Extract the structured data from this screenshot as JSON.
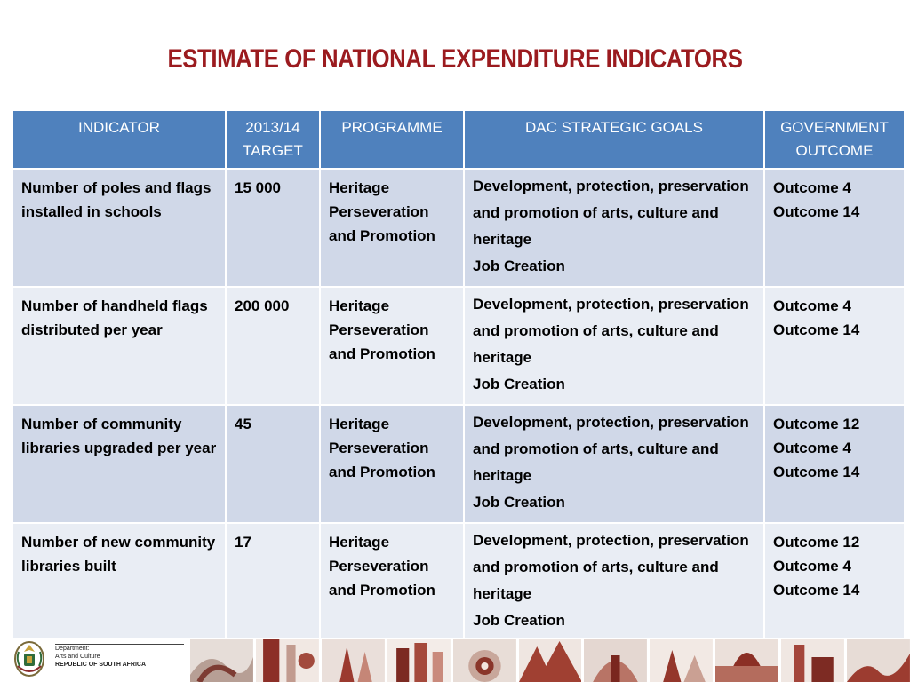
{
  "title": "ESTIMATE OF NATIONAL EXPENDITURE INDICATORS",
  "table": {
    "headers": [
      "INDICATOR",
      "2013/14\nTARGET",
      "PROGRAMME",
      "DAC STRATEGIC GOALS",
      "GOVERNMENT\nOUTCOME"
    ],
    "rows": [
      {
        "indicator": "Number of poles and flags installed in schools",
        "target": "15 000",
        "programme": "Heritage Perseveration and  Promotion",
        "goals": "Development, protection, preservation and promotion of arts, culture and heritage\nJob Creation",
        "outcome": "Outcome 4\nOutcome 14"
      },
      {
        "indicator": "Number of handheld flags distributed per year",
        "target": "200 000",
        "programme": "Heritage Perseveration and  Promotion",
        "goals": "Development, protection, preservation and promotion of arts, culture and heritage\nJob Creation",
        "outcome": "Outcome 4\nOutcome 14"
      },
      {
        "indicator": "Number of community libraries upgraded per year",
        "target": "45",
        "programme": "Heritage Perseveration and  Promotion",
        "goals": "Development, protection, preservation and promotion of arts, culture and heritage\nJob Creation",
        "outcome": "Outcome 12\nOutcome 4\nOutcome 14"
      },
      {
        "indicator": "Number of new community libraries built",
        "target": "17",
        "programme": "Heritage Perseveration and  Promotion",
        "goals": "Development, protection, preservation and promotion of arts, culture and heritage\nJob Creation",
        "outcome": "Outcome 12\nOutcome 4\nOutcome 14"
      }
    ]
  },
  "footer": {
    "department_line1": "Department:",
    "department_line2": "Arts and Culture",
    "country": "REPUBLIC OF SOUTH AFRICA",
    "emblem_icon": "coat-of-arms-icon"
  },
  "colors": {
    "title": "#9b1b1f",
    "header_bg": "#4f81bd",
    "row_dark": "#d0d8e8",
    "row_light": "#e9edf4"
  }
}
